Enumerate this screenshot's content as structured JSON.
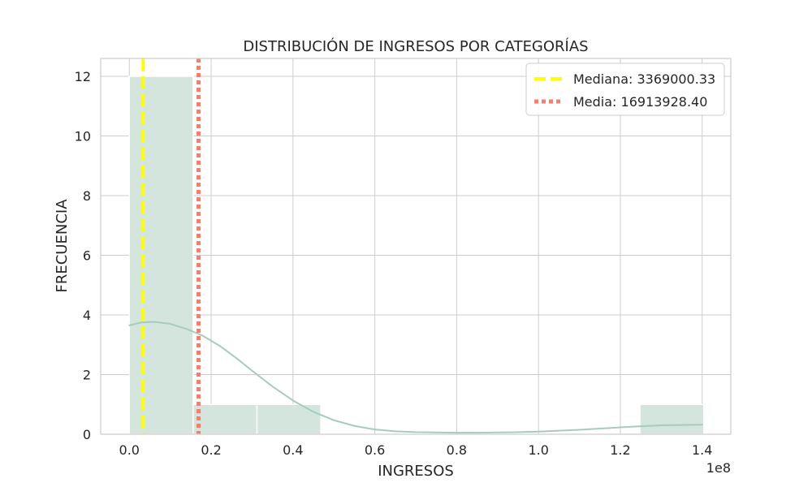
{
  "chart_data": {
    "type": "histogram",
    "title": "DISTRIBUCIÓN DE INGRESOS POR CATEGORÍAS",
    "xlabel": "INGRESOS",
    "ylabel": "FRECUENCIA",
    "x_offset_label": "1e8",
    "x_scale": 100000000,
    "xlim": [
      -0.07,
      1.47
    ],
    "ylim": [
      0,
      12.6
    ],
    "x_ticks": [
      0.0,
      0.2,
      0.4,
      0.6,
      0.8,
      1.0,
      1.2,
      1.4
    ],
    "x_tick_labels": [
      "0.0",
      "0.2",
      "0.4",
      "0.6",
      "0.8",
      "1.0",
      "1.2",
      "1.4"
    ],
    "y_ticks": [
      0,
      2,
      4,
      6,
      8,
      10,
      12
    ],
    "y_tick_labels": [
      "0",
      "2",
      "4",
      "6",
      "8",
      "10",
      "12"
    ],
    "grid": true,
    "bins": [
      {
        "x0": 0.0,
        "x1": 0.156,
        "count": 12
      },
      {
        "x0": 0.156,
        "x1": 0.312,
        "count": 1
      },
      {
        "x0": 0.312,
        "x1": 0.468,
        "count": 1
      },
      {
        "x0": 0.468,
        "x1": 0.624,
        "count": 0
      },
      {
        "x0": 0.624,
        "x1": 0.78,
        "count": 0
      },
      {
        "x0": 0.78,
        "x1": 0.936,
        "count": 0
      },
      {
        "x0": 0.936,
        "x1": 1.092,
        "count": 0
      },
      {
        "x0": 1.092,
        "x1": 1.248,
        "count": 0
      },
      {
        "x0": 1.248,
        "x1": 1.404,
        "count": 1
      }
    ],
    "kde": {
      "x": [
        0.0,
        0.03,
        0.06,
        0.1,
        0.14,
        0.18,
        0.22,
        0.26,
        0.3,
        0.35,
        0.4,
        0.45,
        0.5,
        0.55,
        0.6,
        0.65,
        0.7,
        0.75,
        0.8,
        0.85,
        0.9,
        0.95,
        1.0,
        1.05,
        1.1,
        1.15,
        1.2,
        1.25,
        1.3,
        1.35,
        1.4
      ],
      "y": [
        3.65,
        3.75,
        3.77,
        3.7,
        3.53,
        3.3,
        2.97,
        2.57,
        2.13,
        1.6,
        1.13,
        0.75,
        0.47,
        0.28,
        0.16,
        0.1,
        0.07,
        0.06,
        0.05,
        0.05,
        0.06,
        0.07,
        0.09,
        0.12,
        0.15,
        0.19,
        0.23,
        0.27,
        0.3,
        0.31,
        0.32
      ]
    },
    "vlines": [
      {
        "label": "Mediana: 3369000.33",
        "x": 0.03369,
        "color": "#ffff00",
        "style": "dashed"
      },
      {
        "label": "Media: 16913928.40",
        "x": 0.16914,
        "color": "#f08070",
        "style": "dotted"
      }
    ],
    "legend_position": "top-right",
    "colors": {
      "bar_fill": "#d3e5dd",
      "bar_stroke": "#ffffff",
      "kde_line": "#a8cbbf",
      "grid": "#cccccc",
      "frame": "#cccccc"
    }
  }
}
